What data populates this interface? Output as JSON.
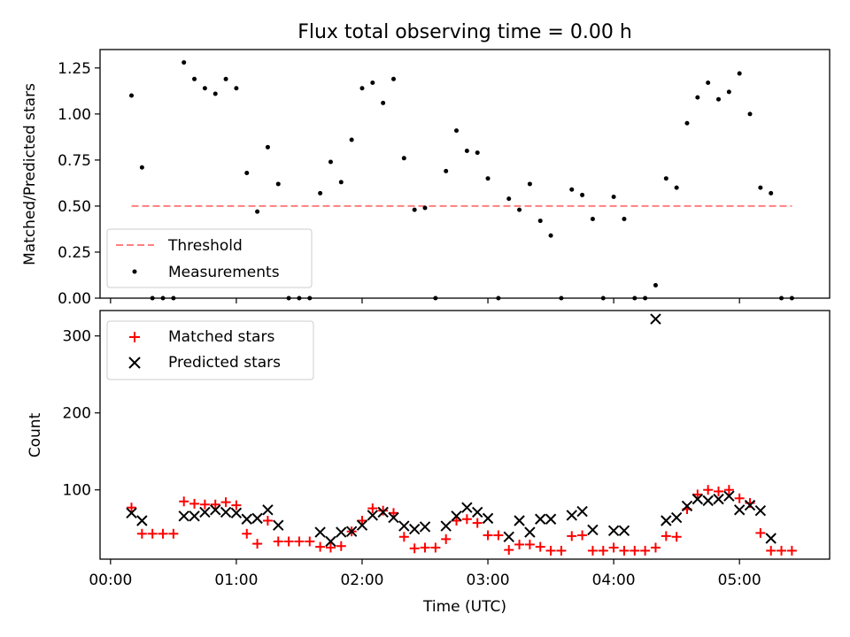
{
  "chart_data": [
    {
      "type": "scatter",
      "title": "Flux total observing time = 0.00 h",
      "xlabel": "",
      "ylabel": "Matched/Predicted stars",
      "ylim": [
        0,
        1.35
      ],
      "xlim_minutes": [
        -5,
        343
      ],
      "yticks": [
        {
          "value": 0,
          "label": "0.00"
        },
        {
          "value": 0.25,
          "label": "0.25"
        },
        {
          "value": 0.5,
          "label": "0.50"
        },
        {
          "value": 0.75,
          "label": "0.75"
        },
        {
          "value": 1.0,
          "label": "1.00"
        },
        {
          "value": 1.25,
          "label": "1.25"
        }
      ],
      "legend": {
        "placement": "lower-left",
        "entries": [
          "Threshold",
          "Measurements"
        ]
      },
      "threshold": {
        "name": "Threshold",
        "value": 0.5,
        "x_start": "00:10",
        "x_end": "05:25",
        "color": "#ff7f7f"
      },
      "series": [
        {
          "name": "Measurements",
          "color": "#000000",
          "points": [
            [
              "00:10",
              1.1
            ],
            [
              "00:15",
              0.71
            ],
            [
              "00:20",
              0
            ],
            [
              "00:25",
              0
            ],
            [
              "00:30",
              0
            ],
            [
              "00:35",
              1.28
            ],
            [
              "00:40",
              1.19
            ],
            [
              "00:45",
              1.14
            ],
            [
              "00:50",
              1.11
            ],
            [
              "00:55",
              1.19
            ],
            [
              "01:00",
              1.14
            ],
            [
              "01:05",
              0.68
            ],
            [
              "01:10",
              0.47
            ],
            [
              "01:15",
              0.82
            ],
            [
              "01:20",
              0.62
            ],
            [
              "01:25",
              0
            ],
            [
              "01:30",
              0
            ],
            [
              "01:35",
              0
            ],
            [
              "01:40",
              0.57
            ],
            [
              "01:45",
              0.74
            ],
            [
              "01:50",
              0.63
            ],
            [
              "01:55",
              0.86
            ],
            [
              "02:00",
              1.14
            ],
            [
              "02:05",
              1.17
            ],
            [
              "02:10",
              1.06
            ],
            [
              "02:15",
              1.19
            ],
            [
              "02:20",
              0.76
            ],
            [
              "02:25",
              0.48
            ],
            [
              "02:30",
              0.49
            ],
            [
              "02:35",
              0
            ],
            [
              "02:40",
              0.69
            ],
            [
              "02:45",
              0.91
            ],
            [
              "02:50",
              0.8
            ],
            [
              "02:55",
              0.79
            ],
            [
              "03:00",
              0.65
            ],
            [
              "03:05",
              0
            ],
            [
              "03:10",
              0.54
            ],
            [
              "03:15",
              0.48
            ],
            [
              "03:20",
              0.62
            ],
            [
              "03:25",
              0.42
            ],
            [
              "03:30",
              0.34
            ],
            [
              "03:35",
              0
            ],
            [
              "03:40",
              0.59
            ],
            [
              "03:45",
              0.56
            ],
            [
              "03:50",
              0.43
            ],
            [
              "03:55",
              0
            ],
            [
              "04:00",
              0.55
            ],
            [
              "04:05",
              0.43
            ],
            [
              "04:10",
              0
            ],
            [
              "04:15",
              0
            ],
            [
              "04:20",
              0.07
            ],
            [
              "04:25",
              0.65
            ],
            [
              "04:30",
              0.6
            ],
            [
              "04:35",
              0.95
            ],
            [
              "04:40",
              1.09
            ],
            [
              "04:45",
              1.17
            ],
            [
              "04:50",
              1.08
            ],
            [
              "04:55",
              1.12
            ],
            [
              "05:00",
              1.22
            ],
            [
              "05:05",
              1.0
            ],
            [
              "05:10",
              0.6
            ],
            [
              "05:15",
              0.57
            ],
            [
              "05:20",
              0
            ],
            [
              "05:25",
              0
            ]
          ]
        }
      ]
    },
    {
      "type": "scatter",
      "title": "",
      "xlabel": "Time (UTC)",
      "ylabel": "Count",
      "ylim": [
        10,
        333
      ],
      "xlim_minutes": [
        -5,
        343
      ],
      "yticks": [
        {
          "value": 100,
          "label": "100"
        },
        {
          "value": 200,
          "label": "200"
        },
        {
          "value": 300,
          "label": "300"
        }
      ],
      "xticks": [
        {
          "value": "00:00",
          "label": "00:00"
        },
        {
          "value": "01:00",
          "label": "01:00"
        },
        {
          "value": "02:00",
          "label": "02:00"
        },
        {
          "value": "03:00",
          "label": "03:00"
        },
        {
          "value": "04:00",
          "label": "04:00"
        },
        {
          "value": "05:00",
          "label": "05:00"
        }
      ],
      "legend": {
        "placement": "top-left",
        "entries": [
          "Matched stars",
          "Predicted stars"
        ]
      },
      "series": [
        {
          "name": "Matched stars",
          "marker": "plus",
          "color": "#ff0000",
          "points": [
            [
              "00:10",
              77
            ],
            [
              "00:15",
              43
            ],
            [
              "00:20",
              43
            ],
            [
              "00:25",
              43
            ],
            [
              "00:30",
              43
            ],
            [
              "00:35",
              85
            ],
            [
              "00:40",
              82
            ],
            [
              "00:45",
              81
            ],
            [
              "00:50",
              81
            ],
            [
              "00:55",
              84
            ],
            [
              "01:00",
              80
            ],
            [
              "01:05",
              43
            ],
            [
              "01:10",
              30
            ],
            [
              "01:15",
              60
            ],
            [
              "01:20",
              33
            ],
            [
              "01:25",
              33
            ],
            [
              "01:30",
              33
            ],
            [
              "01:35",
              33
            ],
            [
              "01:40",
              26
            ],
            [
              "01:45",
              25
            ],
            [
              "01:50",
              27
            ],
            [
              "01:55",
              46
            ],
            [
              "02:00",
              60
            ],
            [
              "02:05",
              76
            ],
            [
              "02:10",
              73
            ],
            [
              "02:15",
              70
            ],
            [
              "02:20",
              39
            ],
            [
              "02:25",
              24
            ],
            [
              "02:30",
              25
            ],
            [
              "02:35",
              25
            ],
            [
              "02:40",
              36
            ],
            [
              "02:45",
              60
            ],
            [
              "02:50",
              62
            ],
            [
              "02:55",
              57
            ],
            [
              "03:00",
              41
            ],
            [
              "03:05",
              41
            ],
            [
              "03:10",
              22
            ],
            [
              "03:15",
              29
            ],
            [
              "03:20",
              29
            ],
            [
              "03:25",
              26
            ],
            [
              "03:30",
              21
            ],
            [
              "03:35",
              21
            ],
            [
              "03:40",
              40
            ],
            [
              "03:45",
              41
            ],
            [
              "03:50",
              21
            ],
            [
              "03:55",
              21
            ],
            [
              "04:00",
              25
            ],
            [
              "04:05",
              21
            ],
            [
              "04:10",
              21
            ],
            [
              "04:15",
              21
            ],
            [
              "04:20",
              25
            ],
            [
              "04:25",
              40
            ],
            [
              "04:30",
              39
            ],
            [
              "04:35",
              75
            ],
            [
              "04:40",
              94
            ],
            [
              "04:45",
              100
            ],
            [
              "04:50",
              98
            ],
            [
              "04:55",
              100
            ],
            [
              "05:00",
              89
            ],
            [
              "05:05",
              83
            ],
            [
              "05:10",
              44
            ],
            [
              "05:15",
              21
            ],
            [
              "05:20",
              21
            ],
            [
              "05:25",
              21
            ]
          ]
        },
        {
          "name": "Predicted stars",
          "marker": "x",
          "color": "#000000",
          "points": [
            [
              "00:10",
              70
            ],
            [
              "00:15",
              60
            ],
            [
              "00:35",
              66
            ],
            [
              "00:40",
              66
            ],
            [
              "00:45",
              71
            ],
            [
              "00:50",
              74
            ],
            [
              "00:55",
              71
            ],
            [
              "01:00",
              70
            ],
            [
              "01:05",
              62
            ],
            [
              "01:10",
              63
            ],
            [
              "01:15",
              74
            ],
            [
              "01:20",
              54
            ],
            [
              "01:40",
              45
            ],
            [
              "01:45",
              33
            ],
            [
              "01:50",
              45
            ],
            [
              "01:55",
              46
            ],
            [
              "02:00",
              54
            ],
            [
              "02:05",
              67
            ],
            [
              "02:10",
              71
            ],
            [
              "02:15",
              64
            ],
            [
              "02:20",
              53
            ],
            [
              "02:25",
              49
            ],
            [
              "02:30",
              52
            ],
            [
              "02:40",
              53
            ],
            [
              "02:45",
              66
            ],
            [
              "02:50",
              77
            ],
            [
              "02:55",
              71
            ],
            [
              "03:00",
              63
            ],
            [
              "03:10",
              39
            ],
            [
              "03:15",
              60
            ],
            [
              "03:20",
              45
            ],
            [
              "03:25",
              62
            ],
            [
              "03:30",
              62
            ],
            [
              "03:40",
              67
            ],
            [
              "03:45",
              72
            ],
            [
              "03:50",
              48
            ],
            [
              "04:00",
              47
            ],
            [
              "04:05",
              47
            ],
            [
              "04:20",
              322
            ],
            [
              "04:25",
              60
            ],
            [
              "04:30",
              64
            ],
            [
              "04:35",
              79
            ],
            [
              "04:40",
              88
            ],
            [
              "04:45",
              86
            ],
            [
              "04:50",
              88
            ],
            [
              "04:55",
              92
            ],
            [
              "05:00",
              74
            ],
            [
              "05:05",
              80
            ],
            [
              "05:10",
              73
            ],
            [
              "05:15",
              37
            ]
          ]
        }
      ]
    }
  ]
}
